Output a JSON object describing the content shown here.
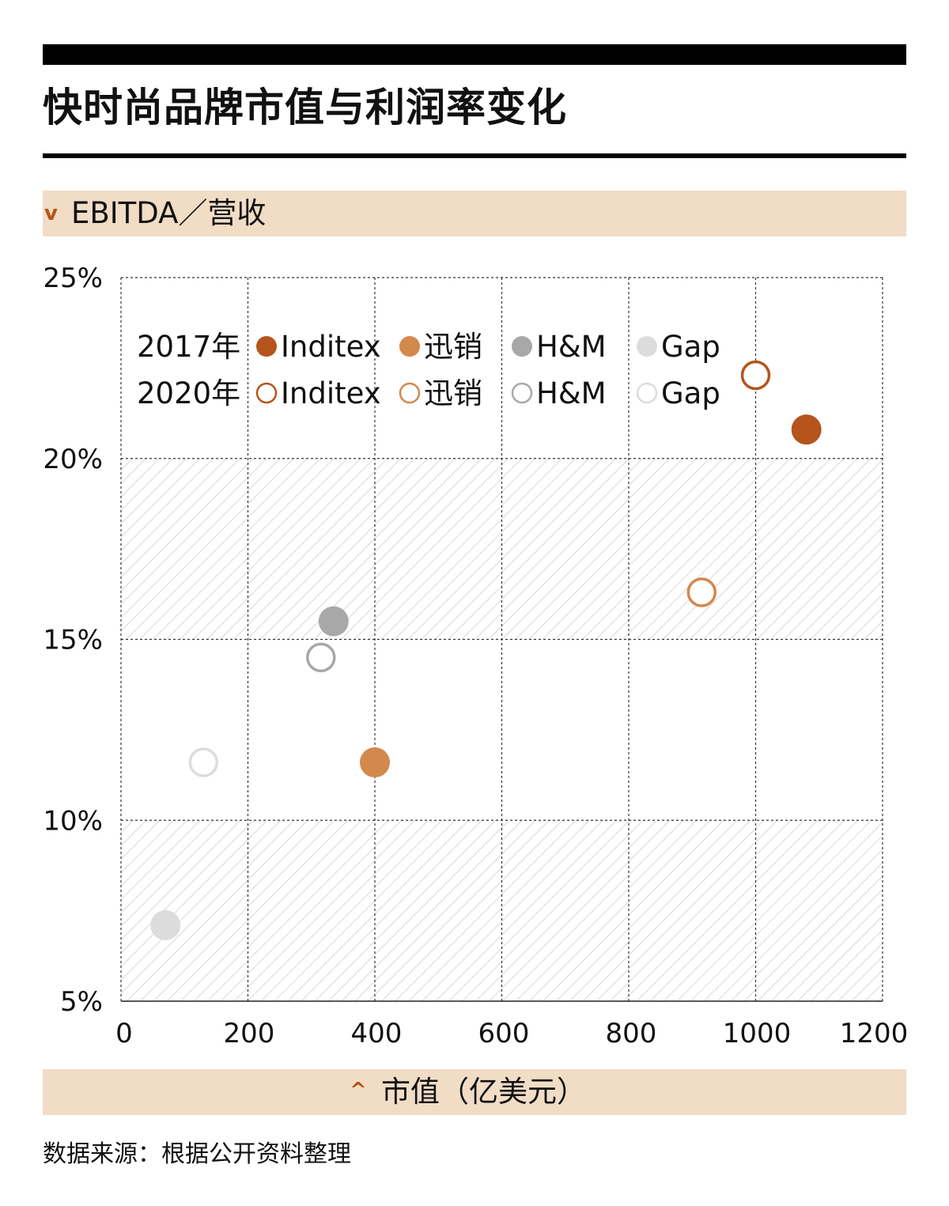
{
  "title": "快时尚品牌市值与利润率变化",
  "source": "数据来源：根据公开资料整理",
  "colors": {
    "inditex": "#b5541b",
    "xunxiao": "#d3884c",
    "hm": "#8c8c8c",
    "gap": "#d0d0d0",
    "band": "#f1dcc5",
    "arrow": "#b5541b",
    "hatch": "#d8d8d8"
  },
  "chart_data": {
    "type": "scatter",
    "title": "快时尚品牌市值与利润率变化",
    "xlabel": "市值（亿美元）",
    "ylabel": "EBITDA／营收",
    "xlim": [
      0,
      1200
    ],
    "ylim": [
      5,
      25
    ],
    "x_ticks": [
      "0",
      "200",
      "400",
      "600",
      "800",
      "1000",
      "1200"
    ],
    "y_ticks": [
      "5%",
      "10%",
      "15%",
      "20%",
      "25%"
    ],
    "grid": true,
    "legend_position": "top-left",
    "legend_rows": [
      "2017年",
      "2020年"
    ],
    "series": [
      {
        "name": "Inditex",
        "year": "2017年",
        "filled": true,
        "color": "#b5541b",
        "points": [
          {
            "x": 1080,
            "y": 20.8
          }
        ]
      },
      {
        "name": "迅销",
        "year": "2017年",
        "filled": true,
        "color": "#d3884c",
        "points": [
          {
            "x": 400,
            "y": 11.6
          }
        ]
      },
      {
        "name": "H&M",
        "year": "2017年",
        "filled": true,
        "color": "#a8a8a8",
        "points": [
          {
            "x": 335,
            "y": 15.5
          }
        ]
      },
      {
        "name": "Gap",
        "year": "2017年",
        "filled": true,
        "color": "#dcdcdc",
        "points": [
          {
            "x": 70,
            "y": 7.1
          }
        ]
      },
      {
        "name": "Inditex",
        "year": "2020年",
        "filled": false,
        "color": "#b5541b",
        "points": [
          {
            "x": 1000,
            "y": 22.3
          }
        ]
      },
      {
        "name": "迅销",
        "year": "2020年",
        "filled": false,
        "color": "#d3884c",
        "points": [
          {
            "x": 915,
            "y": 16.3
          }
        ]
      },
      {
        "name": "H&M",
        "year": "2020年",
        "filled": false,
        "color": "#a8a8a8",
        "points": [
          {
            "x": 315,
            "y": 14.5
          }
        ]
      },
      {
        "name": "Gap",
        "year": "2020年",
        "filled": false,
        "color": "#dcdcdc",
        "points": [
          {
            "x": 130,
            "y": 11.6
          }
        ]
      }
    ]
  }
}
